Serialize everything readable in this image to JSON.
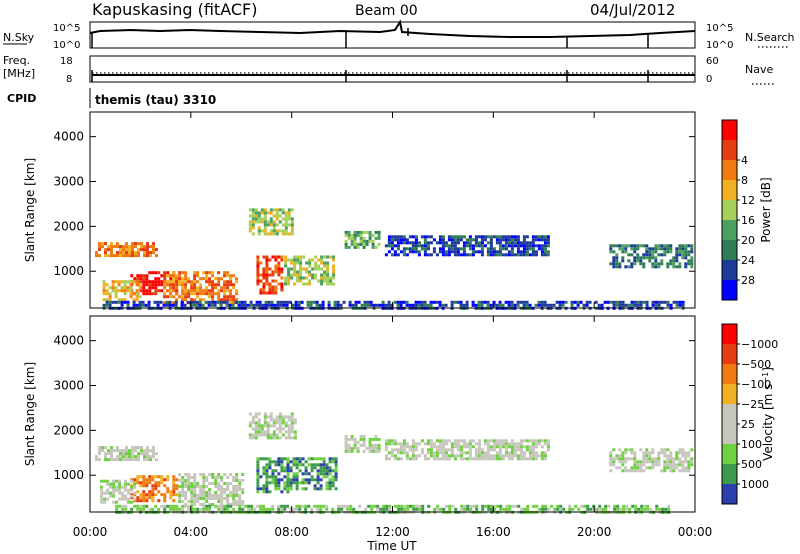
{
  "header": {
    "station": "Kapuskasing (fitACF)",
    "beam": "Beam 00",
    "date": "04/Jul/2012"
  },
  "top_panels": {
    "nsky_label": "N.Sky",
    "nsky_ticks": [
      "10^5",
      "10^0"
    ],
    "nsearch_label": "N.Search",
    "nsearch_ticks": [
      "10^5",
      "10^0"
    ],
    "freq_label": "Freq.",
    "freq_unit": "[MHz]",
    "freq_ticks": [
      "18",
      "8"
    ],
    "nave_label": "Nave",
    "nave_ticks": [
      "60",
      "0"
    ],
    "cpid_label": "CPID",
    "cpid_value": "themis (tau) 3310"
  },
  "chart_data": [
    {
      "type": "heatmap",
      "name": "power",
      "ylabel": "Slant Range [km]",
      "yticks": [
        "4000",
        "3000",
        "2000",
        "1000"
      ],
      "ylim": [
        180,
        4550
      ],
      "xlim": [
        0,
        24
      ],
      "colorbar": {
        "label": "Power [dB]",
        "ticks": [
          "28",
          "24",
          "20",
          "16",
          "12",
          "8",
          "4"
        ],
        "colors": [
          "#0000ff",
          "#1d3a9a",
          "#2e7d55",
          "#4aa060",
          "#a6d05a",
          "#f0b020",
          "#f07a10",
          "#e63c10",
          "#ff0000"
        ]
      },
      "regions": [
        {
          "t0": 0.2,
          "t1": 2.6,
          "r0": 1350,
          "r1": 1650,
          "level": 6
        },
        {
          "t0": 1.6,
          "t1": 3.4,
          "r0": 500,
          "r1": 1000,
          "level": 8
        },
        {
          "t0": 0.5,
          "t1": 2.0,
          "r0": 350,
          "r1": 800,
          "level": 5
        },
        {
          "t0": 2.9,
          "t1": 5.8,
          "r0": 300,
          "r1": 1000,
          "level": 6
        },
        {
          "t0": 6.3,
          "t1": 8.0,
          "r0": 1800,
          "r1": 2400,
          "level": 4
        },
        {
          "t0": 6.6,
          "t1": 7.6,
          "r0": 500,
          "r1": 1350,
          "level": 7
        },
        {
          "t0": 7.7,
          "t1": 9.7,
          "r0": 700,
          "r1": 1350,
          "level": 4
        },
        {
          "t0": 10.1,
          "t1": 11.5,
          "r0": 1500,
          "r1": 1900,
          "level": 3
        },
        {
          "t0": 11.7,
          "t1": 18.2,
          "r0": 1350,
          "r1": 1800,
          "level": 1
        },
        {
          "t0": 20.6,
          "t1": 23.9,
          "r0": 1100,
          "r1": 1600,
          "level": 2
        },
        {
          "t0": 0.5,
          "t1": 23.5,
          "r0": 180,
          "r1": 340,
          "level": 1
        }
      ]
    },
    {
      "type": "heatmap",
      "name": "velocity",
      "ylabel": "Slant Range [km]",
      "yticks": [
        "4000",
        "3000",
        "2000",
        "1000"
      ],
      "ylim": [
        180,
        4550
      ],
      "xlim": [
        0,
        24
      ],
      "xticks": [
        "00:00",
        "04:00",
        "08:00",
        "12:00",
        "16:00",
        "20:00",
        "00:00"
      ],
      "xlabel": "Time UT",
      "colorbar": {
        "label": "Velocity [m s^-1]",
        "ticks": [
          "1000",
          "500",
          "100",
          "25",
          "−25",
          "−100",
          "−500",
          "−1000"
        ],
        "colors": [
          "#2b3fae",
          "#3c9a4a",
          "#6fd040",
          "#c6c6bd",
          "#c6c6bd",
          "#f0b020",
          "#f07a10",
          "#e63c10",
          "#ff0000"
        ]
      },
      "regions": [
        {
          "t0": 0.2,
          "t1": 2.6,
          "r0": 1350,
          "r1": 1650,
          "level": 3
        },
        {
          "t0": 1.6,
          "t1": 3.5,
          "r0": 450,
          "r1": 1000,
          "level": 6
        },
        {
          "t0": 0.4,
          "t1": 1.8,
          "r0": 400,
          "r1": 900,
          "level": 3
        },
        {
          "t0": 3.5,
          "t1": 6.0,
          "r0": 350,
          "r1": 1050,
          "level": 3
        },
        {
          "t0": 6.3,
          "t1": 8.2,
          "r0": 1800,
          "r1": 2400,
          "level": 3
        },
        {
          "t0": 6.6,
          "t1": 7.8,
          "r0": 600,
          "r1": 1400,
          "level": 1
        },
        {
          "t0": 7.8,
          "t1": 9.8,
          "r0": 700,
          "r1": 1400,
          "level": 1
        },
        {
          "t0": 10.1,
          "t1": 11.5,
          "r0": 1500,
          "r1": 1900,
          "level": 3
        },
        {
          "t0": 11.7,
          "t1": 18.2,
          "r0": 1350,
          "r1": 1800,
          "level": 3
        },
        {
          "t0": 20.6,
          "t1": 23.9,
          "r0": 1100,
          "r1": 1600,
          "level": 3
        },
        {
          "t0": 1.0,
          "t1": 23.0,
          "r0": 180,
          "r1": 340,
          "level": 2
        }
      ]
    }
  ]
}
